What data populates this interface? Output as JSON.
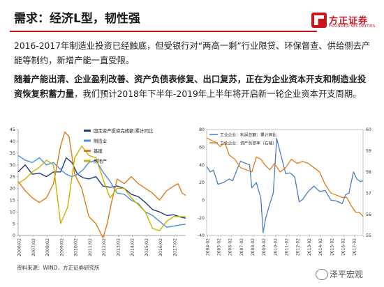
{
  "slide": {
    "title": "需求：经济L型，韧性强",
    "logo_cn": "方正证券",
    "logo_en": "FOUNDER SECURITIES",
    "para1": "2016-2017年制造业投资已经触底，但受银行对“两高一剩”行业限贷、环保督查、供给侧去产能等制约，新增产能一直受限。",
    "para2_bold": "随着产能出清、企业盈利改善、资产负债表修复、出口复苏，正在为企业资本开支和制造业投资恢复积蓄力量",
    "para2_rest": "，我们预计2018年下半年-2019年上半年将开启新一轮企业资本开支周期。",
    "source": "资料来源：WIND，方正证券研究所",
    "watermark": "泽平宏观"
  },
  "chart_data": [
    {
      "type": "line",
      "x_ticks": [
        "2006/02",
        "2007/02",
        "2008/02",
        "2009/02",
        "2010/02",
        "2011/02",
        "2012/02",
        "2013/02",
        "2014/02",
        "2015/02",
        "2016/02",
        "2017/02"
      ],
      "y_ticks": [
        "0",
        "5",
        "10",
        "15",
        "20",
        "25",
        "30",
        "35",
        "40",
        "45"
      ],
      "ylim": [
        0,
        45
      ],
      "xlim": [
        2006.0,
        2017.85
      ],
      "legend_position": "top-right",
      "series": [
        {
          "name": "固定资产投资完成额:累计同比",
          "color": "#1f3d7a",
          "x": [
            2006.0,
            2006.5,
            2007.0,
            2007.5,
            2008.0,
            2008.5,
            2009.0,
            2009.4,
            2009.8,
            2010.2,
            2010.6,
            2011.0,
            2011.5,
            2012.0,
            2012.5,
            2013.0,
            2013.5,
            2014.0,
            2014.5,
            2015.0,
            2015.5,
            2016.0,
            2016.5,
            2017.0,
            2017.5,
            2017.85
          ],
          "y": [
            27,
            30,
            26,
            26.5,
            25,
            27,
            27,
            33,
            31,
            26,
            24.5,
            24,
            25,
            21,
            20.5,
            21,
            20,
            17.5,
            16.5,
            14,
            11,
            10,
            8.5,
            8.8,
            7.8,
            7.3
          ]
        },
        {
          "name": "制造业",
          "color": "#4a90d9",
          "x": [
            2006.0,
            2006.5,
            2007.0,
            2007.5,
            2008.0,
            2008.5,
            2009.0,
            2009.4,
            2009.8,
            2010.2,
            2010.6,
            2011.0,
            2011.5,
            2012.0,
            2012.5,
            2013.0,
            2013.5,
            2014.0,
            2014.5,
            2015.0,
            2015.5,
            2016.0,
            2016.5,
            2017.0,
            2017.5,
            2017.85
          ],
          "y": [
            34,
            32,
            31,
            33,
            30,
            31,
            28,
            26,
            25,
            26,
            28,
            31,
            32,
            27,
            23,
            18,
            17.5,
            15,
            13.5,
            10,
            8.5,
            6,
            3.5,
            4,
            4.5,
            4.8
          ]
        },
        {
          "name": "基建",
          "color": "#e07b1a",
          "x": [
            2006.0,
            2006.5,
            2007.0,
            2007.5,
            2008.0,
            2008.5,
            2009.0,
            2009.3,
            2009.6,
            2010.0,
            2010.5,
            2011.0,
            2011.5,
            2012.0,
            2012.3,
            2012.6,
            2013.0,
            2013.5,
            2014.0,
            2014.5,
            2015.0,
            2015.5,
            2016.0,
            2016.5,
            2017.0,
            2017.3,
            2017.6,
            2017.85
          ],
          "y": [
            23,
            19,
            16,
            14,
            16,
            22,
            38,
            44,
            42,
            26,
            20,
            8,
            5,
            -1,
            5,
            14,
            24,
            22,
            25,
            22,
            20,
            18,
            15,
            19,
            21,
            22,
            18,
            17
          ]
        },
        {
          "name": "房地产",
          "color": "#c8b400",
          "x": [
            2006.0,
            2006.5,
            2007.0,
            2007.5,
            2008.0,
            2008.5,
            2009.0,
            2009.5,
            2010.0,
            2010.5,
            2011.0,
            2011.5,
            2012.0,
            2012.5,
            2013.0,
            2013.5,
            2014.0,
            2014.5,
            2015.0,
            2015.5,
            2016.0,
            2016.5,
            2017.0,
            2017.5,
            2017.85
          ],
          "y": [
            22,
            24,
            27,
            29,
            32,
            30,
            5,
            12,
            33,
            38,
            34,
            33,
            24,
            16,
            20,
            20,
            16,
            13,
            10,
            3,
            2,
            6,
            8,
            8,
            8
          ]
        }
      ]
    },
    {
      "type": "line",
      "x_ticks": [
        "2004-02",
        "2005-02",
        "2006-02",
        "2007-02",
        "2008-02",
        "2009-02",
        "2010-02",
        "2011-02",
        "2012-02",
        "2013-02",
        "2014-02",
        "2015-02",
        "2016-02",
        "2017-02"
      ],
      "y_left_ticks": [
        "-40",
        "-20",
        "0",
        "20",
        "40",
        "60",
        "80"
      ],
      "y_right_ticks": [
        "55",
        "56",
        "57",
        "58",
        "59",
        "60"
      ],
      "ylim_left": [
        -40,
        80
      ],
      "ylim_right": [
        55,
        60
      ],
      "xlim": [
        2004.0,
        2017.85
      ],
      "legend_position": "top-left",
      "series": [
        {
          "name": "工业企业：利润总额：累计同比",
          "color": "#4a7dbf",
          "axis": "left",
          "x": [
            2004.0,
            2004.3,
            2004.6,
            2005.0,
            2005.5,
            2006.0,
            2006.3,
            2006.7,
            2007.0,
            2007.4,
            2007.8,
            2008.0,
            2008.4,
            2008.8,
            2009.0,
            2009.2,
            2009.5,
            2009.9,
            2010.2,
            2010.6,
            2011.0,
            2011.4,
            2011.8,
            2012.2,
            2012.5,
            2013.0,
            2013.5,
            2014.0,
            2014.5,
            2015.0,
            2015.5,
            2016.0,
            2016.3,
            2016.6,
            2017.0,
            2017.3,
            2017.6,
            2017.85
          ],
          "y": [
            38,
            32,
            34,
            18,
            20,
            24,
            22,
            35,
            44,
            42,
            40,
            14,
            20,
            2,
            -37,
            -22,
            -8,
            8,
            70,
            50,
            30,
            31,
            26,
            -2,
            1,
            10,
            16,
            10,
            11,
            0,
            -1,
            -4,
            6,
            8,
            32,
            24,
            21,
            22
          ]
        },
        {
          "name": "工业企业：资产负债率（右轴）",
          "color": "#e07b1a",
          "axis": "right",
          "x": [
            2004.0,
            2004.4,
            2004.8,
            2005.2,
            2005.6,
            2006.0,
            2006.5,
            2007.0,
            2007.5,
            2008.0,
            2008.4,
            2008.8,
            2009.2,
            2009.6,
            2010.0,
            2010.5,
            2011.0,
            2011.5,
            2012.0,
            2012.5,
            2013.0,
            2013.5,
            2014.0,
            2014.5,
            2015.0,
            2015.5,
            2016.0,
            2016.4,
            2016.8,
            2017.2,
            2017.5,
            2017.85
          ],
          "y": [
            59.6,
            59.5,
            59.4,
            59.2,
            59.4,
            58.8,
            58.6,
            58.2,
            58.1,
            58.0,
            58.7,
            58.6,
            58.3,
            58.1,
            58.4,
            58.0,
            58.2,
            58.6,
            58.4,
            58.5,
            58.4,
            58.2,
            58.0,
            57.4,
            57.0,
            56.9,
            56.8,
            56.8,
            56.4,
            56.1,
            56.1,
            55.9
          ]
        }
      ]
    }
  ]
}
